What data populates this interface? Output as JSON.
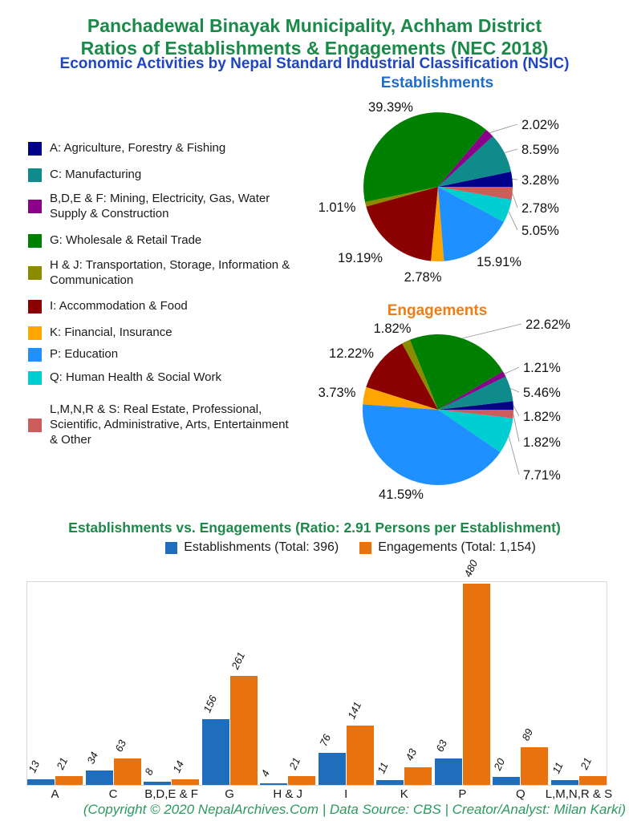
{
  "header": {
    "title_line1": "Panchadewal Binayak Municipality, Achham District",
    "title_line2": "Ratios of Establishments & Engagements (NEC 2018)",
    "subtitle": "Economic Activities by Nepal Standard Industrial Classification (NSIC)"
  },
  "colors": {
    "title_green": "#1B8A49",
    "subtitle_blue": "#1F45C0",
    "pie1_title_blue": "#1D6CCE",
    "pie2_title_orange": "#F07D12",
    "footer_green": "#2C9A5D",
    "leader_line": "#999999",
    "categories": {
      "A": "#00008B",
      "C": "#0F8B8B",
      "BDEF": "#8B008B",
      "G": "#008000",
      "HJ": "#8B8B00",
      "I": "#8B0000",
      "K": "#FFA500",
      "P": "#1E90FF",
      "Q": "#00CED1",
      "LMNRS": "#CD5C5C"
    }
  },
  "side_legend": {
    "items": [
      {
        "key": "A",
        "label": "A: Agriculture, Forestry & Fishing"
      },
      {
        "key": "C",
        "label": "C: Manufacturing"
      },
      {
        "key": "BDEF",
        "label": "B,D,E & F: Mining, Electricity, Gas, Water Supply & Construction"
      },
      {
        "key": "G",
        "label": "G: Wholesale & Retail Trade"
      },
      {
        "key": "HJ",
        "label": "H & J: Transportation, Storage, Information & Communication"
      },
      {
        "key": "I",
        "label": "I: Accommodation & Food"
      },
      {
        "key": "K",
        "label": "K: Financial, Insurance"
      },
      {
        "key": "P",
        "label": "P: Education"
      },
      {
        "key": "Q",
        "label": "Q: Human Health & Social Work"
      },
      {
        "key": "LMNRS",
        "label": "L,M,N,R & S: Real Estate, Professional, Scientific, Administrative, Arts, Entertainment & Other"
      }
    ]
  },
  "chart_data": [
    {
      "type": "pie",
      "title": "Establishments",
      "legend_position": "left",
      "slices": [
        {
          "key": "A",
          "category": "A: Agriculture, Forestry & Fishing",
          "percent": 3.28
        },
        {
          "key": "C",
          "category": "C: Manufacturing",
          "percent": 8.59
        },
        {
          "key": "BDEF",
          "category": "B,D,E & F: Mining, Electricity, Gas, Water Supply & Construction",
          "percent": 2.02
        },
        {
          "key": "G",
          "category": "G: Wholesale & Retail Trade",
          "percent": 39.39
        },
        {
          "key": "HJ",
          "category": "H & J: Transportation, Storage, Information & Communication",
          "percent": 1.01
        },
        {
          "key": "I",
          "category": "I: Accommodation & Food",
          "percent": 19.19
        },
        {
          "key": "K",
          "category": "K: Financial, Insurance",
          "percent": 2.78
        },
        {
          "key": "P",
          "category": "P: Education",
          "percent": 15.91
        },
        {
          "key": "Q",
          "category": "Q: Human Health & Social Work",
          "percent": 5.05
        },
        {
          "key": "LMNRS",
          "category": "L,M,N,R & S: Real Estate, Professional, Scientific, Administrative, Arts, Entertainment & Other",
          "percent": 2.78
        }
      ]
    },
    {
      "type": "pie",
      "title": "Engagements",
      "legend_position": "left",
      "slices": [
        {
          "key": "A",
          "category": "A: Agriculture, Forestry & Fishing",
          "percent": 1.82
        },
        {
          "key": "C",
          "category": "C: Manufacturing",
          "percent": 5.46
        },
        {
          "key": "BDEF",
          "category": "B,D,E & F: Mining, Electricity, Gas, Water Supply & Construction",
          "percent": 1.21
        },
        {
          "key": "G",
          "category": "G: Wholesale & Retail Trade",
          "percent": 22.62
        },
        {
          "key": "HJ",
          "category": "H & J: Transportation, Storage, Information & Communication",
          "percent": 1.82
        },
        {
          "key": "I",
          "category": "I: Accommodation & Food",
          "percent": 12.22
        },
        {
          "key": "K",
          "category": "K: Financial, Insurance",
          "percent": 3.73
        },
        {
          "key": "P",
          "category": "P: Education",
          "percent": 41.59
        },
        {
          "key": "Q",
          "category": "Q: Human Health & Social Work",
          "percent": 7.71
        },
        {
          "key": "LMNRS",
          "category": "L,M,N,R & S: Real Estate, Professional, Scientific, Administrative, Arts, Entertainment & Other",
          "percent": 1.82
        }
      ]
    },
    {
      "type": "bar",
      "title": "Establishments vs. Engagements (Ratio: 2.91 Persons per Establishment)",
      "categories": [
        "A",
        "C",
        "B,D,E & F",
        "G",
        "H & J",
        "I",
        "K",
        "P",
        "Q",
        "L,M,N,R & S"
      ],
      "series": [
        {
          "name": "Establishments (Total: 396)",
          "color": "#1F6EBE",
          "values": [
            13,
            34,
            8,
            156,
            4,
            76,
            11,
            63,
            20,
            11
          ]
        },
        {
          "name": "Engagements (Total: 1,154)",
          "color": "#EA720E",
          "values": [
            21,
            63,
            14,
            261,
            21,
            141,
            43,
            480,
            89,
            21
          ]
        }
      ],
      "ylim": [
        0,
        480
      ],
      "grid": false,
      "legend_position": "top"
    }
  ],
  "footer": {
    "text": "(Copyright © 2020 NepalArchives.Com | Data Source: CBS | Creator/Analyst: Milan Karki)"
  }
}
